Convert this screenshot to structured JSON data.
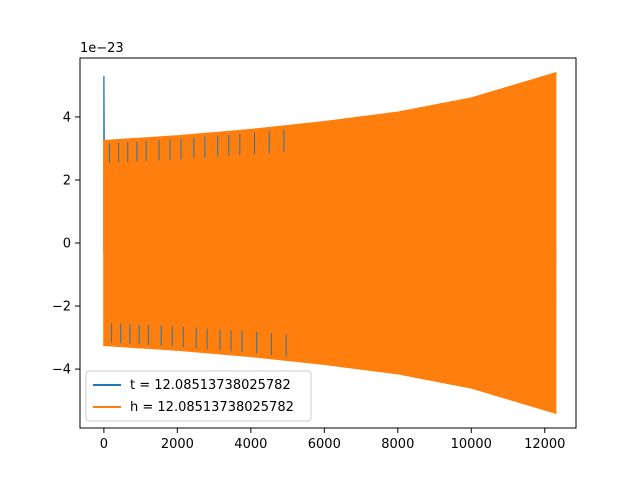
{
  "chart_data": {
    "type": "line",
    "title": "",
    "xlabel": "",
    "ylabel": "",
    "y_offset_label": "1e−23",
    "xlim": [
      -650,
      12850
    ],
    "ylim": [
      -5.87,
      5.87
    ],
    "x_ticks": [
      0,
      2000,
      4000,
      6000,
      8000,
      10000,
      12000
    ],
    "x_tick_labels": [
      "0",
      "2000",
      "4000",
      "6000",
      "8000",
      "10000",
      "12000"
    ],
    "y_ticks": [
      -4,
      -2,
      0,
      2,
      4
    ],
    "y_tick_labels": [
      "−4",
      "−2",
      "0",
      "2",
      "4"
    ],
    "grid": false,
    "legend_position": "lower-left",
    "series": [
      {
        "name": "t = 12.08513738025782",
        "color": "#1f77b4",
        "description_values": {
          "x_range": [
            0,
            12300
          ],
          "spike_at_start": 5.3,
          "envelope_x": [
            0,
            2000,
            4000,
            6000,
            8000,
            10000,
            12300
          ],
          "envelope_amp": [
            3.25,
            3.4,
            3.6,
            3.85,
            4.15,
            4.6,
            5.4
          ]
        }
      },
      {
        "name": "h = 12.08513738025782",
        "color": "#ff7f0e",
        "description_values": {
          "x_range": [
            0,
            12300
          ],
          "envelope_x": [
            0,
            2000,
            4000,
            6000,
            8000,
            10000,
            12300
          ],
          "envelope_amp": [
            3.25,
            3.4,
            3.6,
            3.85,
            4.15,
            4.6,
            5.4
          ]
        }
      }
    ]
  }
}
